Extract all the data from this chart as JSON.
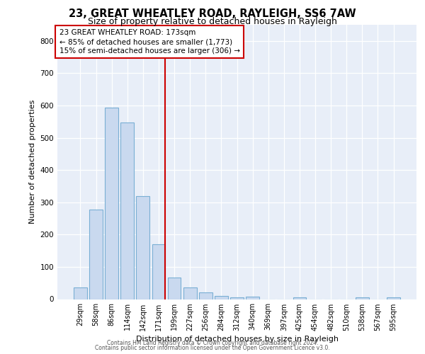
{
  "title1": "23, GREAT WHEATLEY ROAD, RAYLEIGH, SS6 7AW",
  "title2": "Size of property relative to detached houses in Rayleigh",
  "xlabel": "Distribution of detached houses by size in Rayleigh",
  "ylabel": "Number of detached properties",
  "bar_labels": [
    "29sqm",
    "58sqm",
    "86sqm",
    "114sqm",
    "142sqm",
    "171sqm",
    "199sqm",
    "227sqm",
    "256sqm",
    "284sqm",
    "312sqm",
    "340sqm",
    "369sqm",
    "397sqm",
    "425sqm",
    "454sqm",
    "482sqm",
    "510sqm",
    "538sqm",
    "567sqm",
    "595sqm"
  ],
  "bar_values": [
    37,
    278,
    593,
    548,
    320,
    170,
    68,
    37,
    20,
    10,
    5,
    8,
    0,
    0,
    5,
    0,
    0,
    0,
    5,
    0,
    5
  ],
  "bar_color": "#c9d9ef",
  "bar_edge_color": "#7aafd4",
  "vline_color": "#cc0000",
  "vline_x_index": 5,
  "annotation_text": "23 GREAT WHEATLEY ROAD: 173sqm\n← 85% of detached houses are smaller (1,773)\n15% of semi-detached houses are larger (306) →",
  "footer_line1": "Contains HM Land Registry data © Crown copyright and database right 2024.",
  "footer_line2": "Contains public sector information licensed under the Open Government Licence v3.0.",
  "ylim": [
    0,
    850
  ],
  "yticks": [
    0,
    100,
    200,
    300,
    400,
    500,
    600,
    700,
    800
  ],
  "bg_color": "#e8eef8",
  "grid_color": "#ffffff",
  "title1_fontsize": 10.5,
  "title2_fontsize": 9,
  "tick_fontsize": 7,
  "axis_label_fontsize": 8,
  "annotation_fontsize": 7.5,
  "footer_fontsize": 5.5
}
